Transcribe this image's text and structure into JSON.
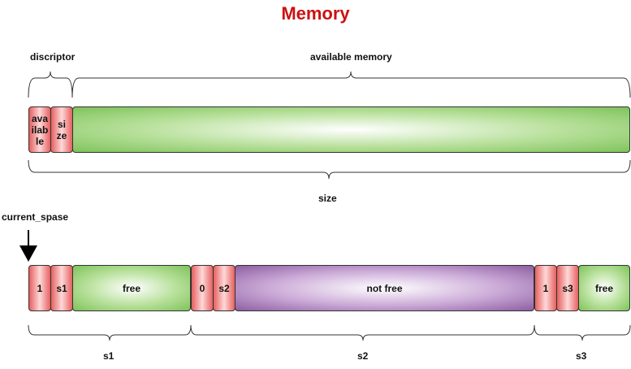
{
  "title": "Memory",
  "top": {
    "descriptor_label": "discriptor",
    "available_memory_label": "available memory",
    "size_label": "size",
    "cells": {
      "available": "ava\nilab\nle",
      "size": "si\nze",
      "memory": ""
    }
  },
  "bottom": {
    "pointer_label": "current_spase",
    "cells": [
      "1",
      "s1",
      "free",
      "0",
      "s2",
      "not free",
      "1",
      "s3",
      "free"
    ],
    "segments": [
      "s1",
      "s2",
      "s3"
    ]
  }
}
